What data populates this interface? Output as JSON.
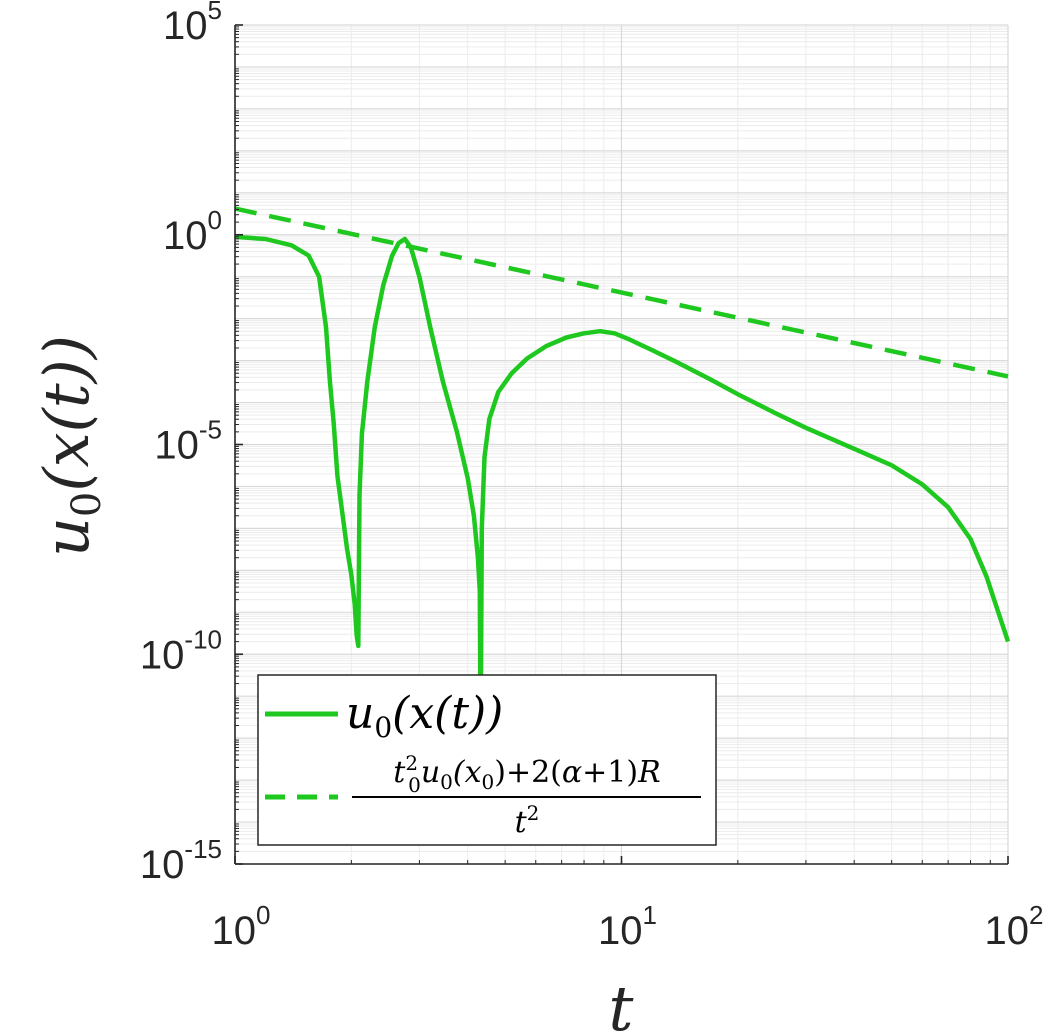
{
  "colors": {
    "series": "#1ec81e",
    "axis": "#262626",
    "grid_major": "#d9d9d9",
    "grid_minor": "#ececec"
  },
  "chart_data": {
    "type": "line",
    "xscale": "log",
    "yscale": "log",
    "xlim": [
      1,
      100
    ],
    "ylim": [
      1e-15,
      100000
    ],
    "grid": "on (major and minor)",
    "legend_position": "bottom-left",
    "xlabel": "t",
    "ylabel": "u0(x(t))",
    "x_ticks": [
      {
        "base": "10",
        "exp": "0",
        "value": 1
      },
      {
        "base": "10",
        "exp": "1",
        "value": 10
      },
      {
        "base": "10",
        "exp": "2",
        "value": 100
      }
    ],
    "y_ticks": [
      {
        "base": "10",
        "exp": "5",
        "value": 100000
      },
      {
        "base": "10",
        "exp": "0",
        "value": 1
      },
      {
        "base": "10",
        "exp": "-5",
        "value": 1e-05
      },
      {
        "base": "10",
        "exp": "-10",
        "value": 1e-10
      },
      {
        "base": "10",
        "exp": "-15",
        "value": 1e-15
      }
    ],
    "series": [
      {
        "name": "u0(x(t))",
        "style": "solid",
        "x": [
          1.0,
          1.2,
          1.4,
          1.55,
          1.65,
          1.72,
          1.76,
          1.8,
          1.84,
          1.9,
          1.95,
          2.0,
          2.04,
          2.065,
          2.085,
          2.1,
          2.13,
          2.2,
          2.3,
          2.42,
          2.55,
          2.65,
          2.75,
          2.85,
          3.0,
          3.2,
          3.45,
          3.75,
          4.0,
          4.15,
          4.25,
          4.3,
          4.32,
          4.35,
          4.42,
          4.55,
          4.8,
          5.2,
          5.7,
          6.4,
          7.2,
          8.0,
          8.8,
          9.6,
          10.5,
          12,
          14,
          17,
          20,
          25,
          30,
          40,
          50,
          60,
          70,
          80,
          88,
          94,
          98,
          100
        ],
        "y": [
          0.89,
          0.79,
          0.56,
          0.32,
          0.1,
          0.0063,
          0.00032,
          3.2e-05,
          1.8e-06,
          2e-07,
          3.2e-08,
          7.9e-09,
          1.58e-09,
          2.8e-10,
          1.58e-10,
          6.3e-07,
          1.78e-05,
          0.000316,
          0.00631,
          0.063,
          0.316,
          0.631,
          0.794,
          0.501,
          0.1,
          0.0063,
          0.000316,
          2e-05,
          1.58e-06,
          2e-07,
          2e-08,
          3.16e-09,
          7.9e-13,
          1e-07,
          5e-06,
          4e-05,
          0.000178,
          0.000501,
          0.00112,
          0.00224,
          0.00355,
          0.00447,
          0.00501,
          0.00447,
          0.00316,
          0.00178,
          0.00089,
          0.000355,
          0.000158,
          5.6e-05,
          2.5e-05,
          7.9e-06,
          3.2e-06,
          1.12e-06,
          3.2e-07,
          5.6e-08,
          7.1e-09,
          1.12e-09,
          3.55e-10,
          2e-10
        ]
      },
      {
        "name": "(t0^2 u0(x0) + 2(α+1)R) / t^2",
        "style": "dashed",
        "x": [
          1,
          100
        ],
        "y": [
          4.2,
          0.00042
        ]
      }
    ]
  }
}
